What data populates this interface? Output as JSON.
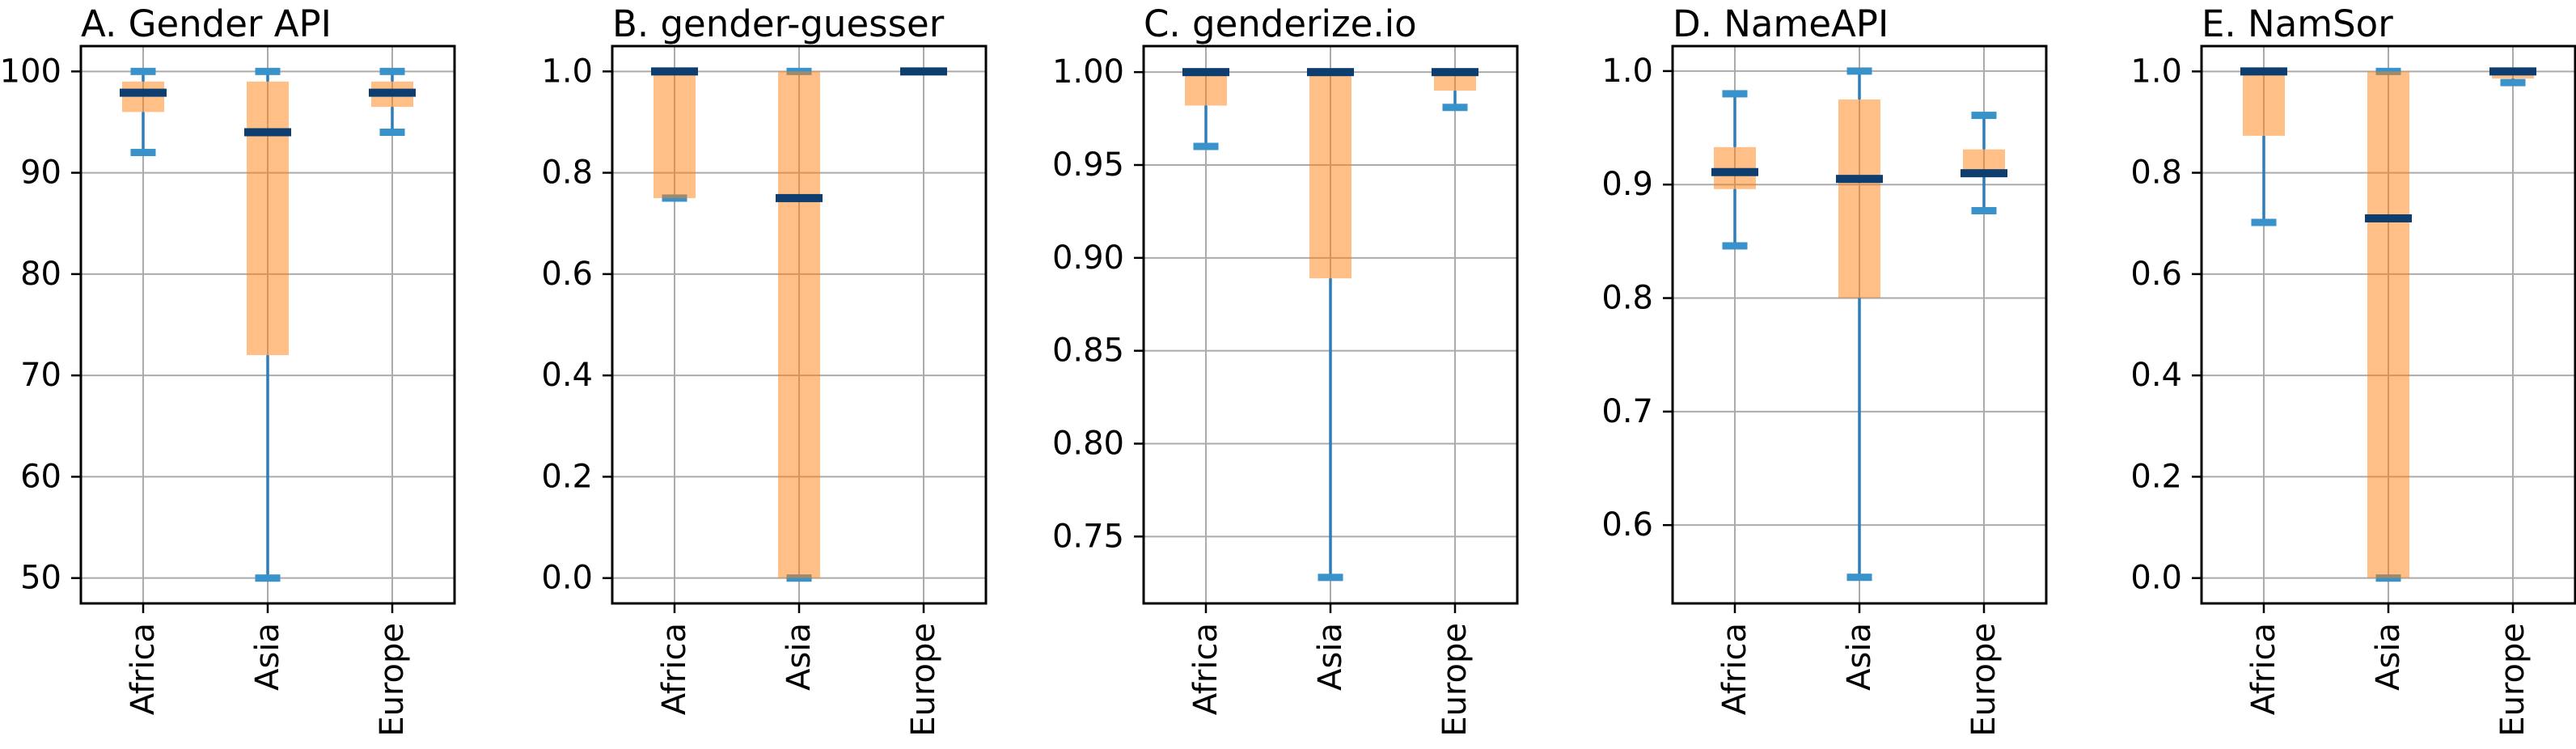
{
  "figure": {
    "title": "",
    "x_categories": [
      "Africa",
      "Asia",
      "Europe"
    ],
    "grid": true,
    "legend": "none",
    "style": {
      "box_fill": "#FF7F0E",
      "box_fill_opacity": 0.5,
      "median_color": "#0E3D6F",
      "whisker_color": "#2C7DBB",
      "cap_color": "#3A92CA",
      "grid_color": "#ABABAB",
      "spine_color": "#000000",
      "tick_label_color": "#000000",
      "background": "#FFFFFF"
    }
  },
  "chart_data": [
    {
      "type": "box",
      "title": "A. Gender API",
      "categories": [
        "Africa",
        "Asia",
        "Europe"
      ],
      "ylim": [
        47.5,
        102.5
      ],
      "yticks": [
        50,
        60,
        70,
        80,
        90,
        100
      ],
      "ytick_labels": [
        "50",
        "60",
        "70",
        "80",
        "90",
        "100"
      ],
      "boxes": [
        {
          "category": "Africa",
          "whisker_low": 92,
          "q1": 96,
          "median": 97.9,
          "q3": 99,
          "whisker_high": 100
        },
        {
          "category": "Asia",
          "whisker_low": 50,
          "q1": 72,
          "median": 94,
          "q3": 99,
          "whisker_high": 100
        },
        {
          "category": "Europe",
          "whisker_low": 94,
          "q1": 96.5,
          "median": 97.9,
          "q3": 99,
          "whisker_high": 100
        }
      ]
    },
    {
      "type": "box",
      "title": "B. gender-guesser",
      "categories": [
        "Africa",
        "Asia",
        "Europe"
      ],
      "ylim": [
        -0.05,
        1.05
      ],
      "yticks": [
        0.0,
        0.2,
        0.4,
        0.6,
        0.8,
        1.0
      ],
      "ytick_labels": [
        "0.0",
        "0.2",
        "0.4",
        "0.6",
        "0.8",
        "1.0"
      ],
      "boxes": [
        {
          "category": "Africa",
          "whisker_low": 0.75,
          "q1": 0.75,
          "median": 1.0,
          "q3": 1.0,
          "whisker_high": 1.0
        },
        {
          "category": "Asia",
          "whisker_low": 0.0,
          "q1": 0.0,
          "median": 0.75,
          "q3": 1.0,
          "whisker_high": 1.0
        },
        {
          "category": "Europe",
          "whisker_low": 1.0,
          "q1": 1.0,
          "median": 1.0,
          "q3": 1.0,
          "whisker_high": 1.0
        }
      ]
    },
    {
      "type": "box",
      "title": "C. genderize.io",
      "categories": [
        "Africa",
        "Asia",
        "Europe"
      ],
      "ylim": [
        0.714,
        1.014
      ],
      "yticks": [
        0.75,
        0.8,
        0.85,
        0.9,
        0.95,
        1.0
      ],
      "ytick_labels": [
        "0.75",
        "0.80",
        "0.85",
        "0.90",
        "0.95",
        "1.00"
      ],
      "boxes": [
        {
          "category": "Africa",
          "whisker_low": 0.96,
          "q1": 0.982,
          "median": 1.0,
          "q3": 1.0,
          "whisker_high": 1.0
        },
        {
          "category": "Asia",
          "whisker_low": 0.728,
          "q1": 0.889,
          "median": 1.0,
          "q3": 1.0,
          "whisker_high": 1.0
        },
        {
          "category": "Europe",
          "whisker_low": 0.981,
          "q1": 0.99,
          "median": 1.0,
          "q3": 1.0,
          "whisker_high": 1.0
        }
      ]
    },
    {
      "type": "box",
      "title": "D. NameAPI",
      "categories": [
        "Africa",
        "Asia",
        "Europe"
      ],
      "ylim": [
        0.531,
        1.022
      ],
      "yticks": [
        0.6,
        0.7,
        0.8,
        0.9,
        1.0
      ],
      "ytick_labels": [
        "0.6",
        "0.7",
        "0.8",
        "0.9",
        "1.0"
      ],
      "boxes": [
        {
          "category": "Africa",
          "whisker_low": 0.846,
          "q1": 0.896,
          "median": 0.911,
          "q3": 0.933,
          "whisker_high": 0.98
        },
        {
          "category": "Asia",
          "whisker_low": 0.554,
          "q1": 0.8,
          "median": 0.905,
          "q3": 0.975,
          "whisker_high": 1.0
        },
        {
          "category": "Europe",
          "whisker_low": 0.877,
          "q1": 0.909,
          "median": 0.91,
          "q3": 0.931,
          "whisker_high": 0.961
        }
      ]
    },
    {
      "type": "box",
      "title": "E. NamSor",
      "categories": [
        "Africa",
        "Asia",
        "Europe"
      ],
      "ylim": [
        -0.05,
        1.05
      ],
      "yticks": [
        0.0,
        0.2,
        0.4,
        0.6,
        0.8,
        1.0
      ],
      "ytick_labels": [
        "0.0",
        "0.2",
        "0.4",
        "0.6",
        "0.8",
        "1.0"
      ],
      "boxes": [
        {
          "category": "Africa",
          "whisker_low": 0.702,
          "q1": 0.873,
          "median": 1.0,
          "q3": 1.0,
          "whisker_high": 1.0
        },
        {
          "category": "Asia",
          "whisker_low": 0.0,
          "q1": 0.0,
          "median": 0.71,
          "q3": 1.0,
          "whisker_high": 1.0
        },
        {
          "category": "Europe",
          "whisker_low": 0.978,
          "q1": 0.986,
          "median": 1.0,
          "q3": 1.0,
          "whisker_high": 1.0
        }
      ]
    }
  ]
}
